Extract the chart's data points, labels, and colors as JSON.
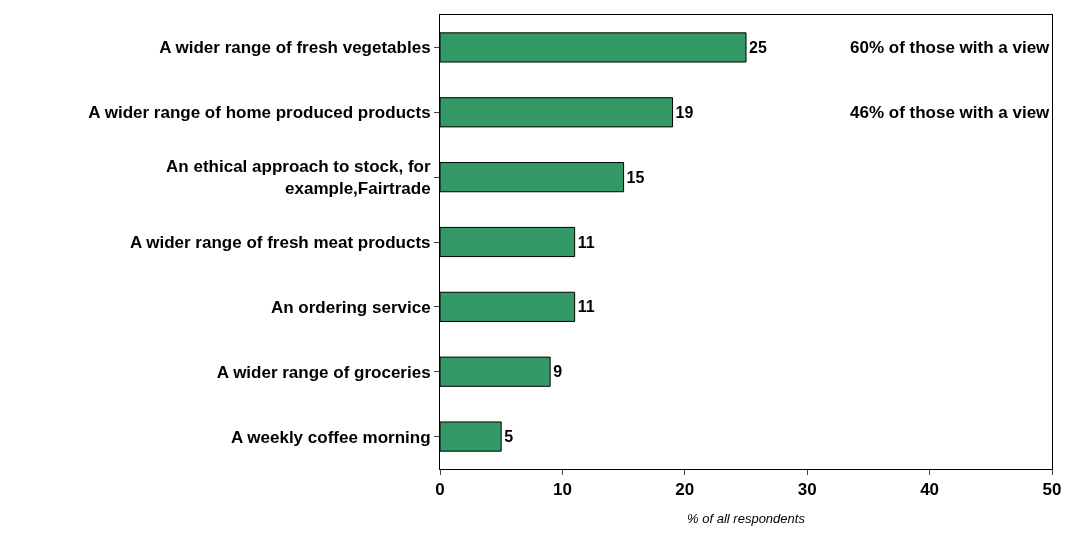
{
  "chart_data": {
    "type": "bar",
    "orientation": "horizontal",
    "categories": [
      "A wider range of fresh vegetables",
      "A wider range of home produced products",
      "An ethical approach to stock, for example,Fairtrade",
      "A wider range of fresh meat products",
      "An ordering service",
      "A wider range of groceries",
      "A weekly coffee morning"
    ],
    "values": [
      25,
      19,
      15,
      11,
      11,
      9,
      5
    ],
    "color": "#339966",
    "xlabel": "% of all respondents",
    "xlim": [
      0,
      50
    ],
    "xticks": [
      0,
      10,
      20,
      30,
      40,
      50
    ],
    "data_labels": true,
    "annotations": [
      "60% of those with a view",
      "46% of those with a view"
    ]
  }
}
